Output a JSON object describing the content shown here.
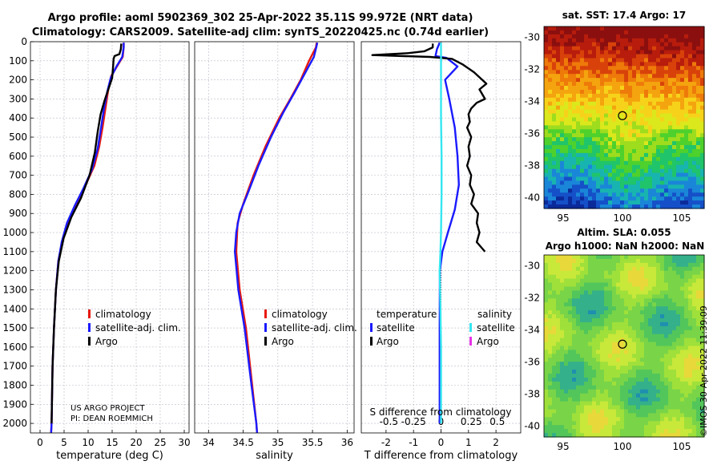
{
  "header": {
    "title_line1": "Argo profile: aoml 5902369_302 25-Apr-2022 35.11S 99.972E (NRT data)",
    "title_line2": "Climatology: CARS2009. Satellite-adj clim: synTS_20220425.nc (0.74d earlier)"
  },
  "colors": {
    "climatology": "#e8190f",
    "satellite": "#1a1aff",
    "argo": "#000000",
    "sat_salinity": "#33e6f0",
    "argo_salinity": "#e633e6"
  },
  "chart_data": [
    {
      "type": "line",
      "name": "temperature-profile",
      "xlabel": "temperature (deg C)",
      "ylabel": "",
      "xlim": [
        -2,
        31
      ],
      "ylim": [
        2050,
        0
      ],
      "xticks": [
        "0",
        "5",
        "10",
        "15",
        "20",
        "25",
        "30"
      ],
      "yticks": [
        "0",
        "100",
        "200",
        "300",
        "400",
        "500",
        "600",
        "700",
        "800",
        "900",
        "1000",
        "1100",
        "1200",
        "1300",
        "1400",
        "1500",
        "1600",
        "1700",
        "1800",
        "1900",
        "2000"
      ],
      "legend": [
        "climatology",
        "satellite-adj. clim.",
        "Argo"
      ],
      "series": [
        {
          "name": "climatology",
          "points": [
            [
              2.3,
              2050
            ],
            [
              2.4,
              2000
            ],
            [
              2.6,
              1700
            ],
            [
              2.9,
              1500
            ],
            [
              3.3,
              1300
            ],
            [
              3.8,
              1150
            ],
            [
              4.6,
              1050
            ],
            [
              5.8,
              950
            ],
            [
              7.5,
              850
            ],
            [
              9.5,
              750
            ],
            [
              11.3,
              650
            ],
            [
              12.3,
              550
            ],
            [
              13,
              450
            ],
            [
              13.6,
              350
            ],
            [
              14.2,
              250
            ],
            [
              14.8,
              180
            ],
            [
              16,
              130
            ],
            [
              17.2,
              80
            ],
            [
              17.4,
              30
            ],
            [
              17.4,
              5
            ]
          ]
        },
        {
          "name": "satellite-adj. clim.",
          "points": [
            [
              2.3,
              2050
            ],
            [
              2.4,
              2000
            ],
            [
              2.6,
              1700
            ],
            [
              2.9,
              1500
            ],
            [
              3.3,
              1300
            ],
            [
              3.8,
              1150
            ],
            [
              4.5,
              1050
            ],
            [
              5.6,
              950
            ],
            [
              7.2,
              860
            ],
            [
              9,
              770
            ],
            [
              10.8,
              670
            ],
            [
              12,
              560
            ],
            [
              12.7,
              450
            ],
            [
              13.3,
              350
            ],
            [
              14,
              260
            ],
            [
              14.7,
              190
            ],
            [
              15.9,
              130
            ],
            [
              17.1,
              80
            ],
            [
              17.4,
              30
            ],
            [
              17.4,
              5
            ]
          ]
        },
        {
          "name": "Argo",
          "points": [
            [
              2.4,
              2000
            ],
            [
              2.6,
              1700
            ],
            [
              2.9,
              1500
            ],
            [
              3.3,
              1300
            ],
            [
              3.9,
              1150
            ],
            [
              4.9,
              1030
            ],
            [
              6.5,
              920
            ],
            [
              8.5,
              820
            ],
            [
              10.3,
              700
            ],
            [
              11.4,
              580
            ],
            [
              12,
              470
            ],
            [
              12.6,
              380
            ],
            [
              13.4,
              310
            ],
            [
              14.2,
              250
            ],
            [
              15,
              190
            ],
            [
              15.2,
              130
            ],
            [
              15.3,
              90
            ],
            [
              15.5,
              75
            ],
            [
              16.5,
              65
            ],
            [
              16.8,
              40
            ],
            [
              16.9,
              10
            ]
          ]
        }
      ]
    },
    {
      "type": "line",
      "name": "salinity-profile",
      "xlabel": "salinity",
      "ylabel": "",
      "xlim": [
        33.8,
        36.1
      ],
      "ylim": [
        2050,
        0
      ],
      "xticks": [
        "34",
        "34.5",
        "35",
        "35.5",
        "36"
      ],
      "legend": [
        "climatology",
        "satellite-adj. clim.",
        "Argo"
      ],
      "series": [
        {
          "name": "climatology",
          "points": [
            [
              34.7,
              2050
            ],
            [
              34.69,
              2000
            ],
            [
              34.63,
              1800
            ],
            [
              34.54,
              1500
            ],
            [
              34.45,
              1300
            ],
            [
              34.4,
              1100
            ],
            [
              34.42,
              950
            ],
            [
              34.5,
              850
            ],
            [
              34.65,
              700
            ],
            [
              34.82,
              550
            ],
            [
              35.02,
              400
            ],
            [
              35.18,
              300
            ],
            [
              35.33,
              200
            ],
            [
              35.45,
              100
            ],
            [
              35.55,
              30
            ],
            [
              35.56,
              5
            ]
          ]
        },
        {
          "name": "satellite-adj. clim.",
          "points": [
            [
              34.7,
              2050
            ],
            [
              34.69,
              2000
            ],
            [
              34.62,
              1800
            ],
            [
              34.52,
              1500
            ],
            [
              34.43,
              1300
            ],
            [
              34.38,
              1100
            ],
            [
              34.4,
              1000
            ],
            [
              34.45,
              900
            ],
            [
              34.56,
              800
            ],
            [
              34.72,
              650
            ],
            [
              34.9,
              500
            ],
            [
              35.08,
              370
            ],
            [
              35.25,
              260
            ],
            [
              35.4,
              160
            ],
            [
              35.52,
              80
            ],
            [
              35.56,
              20
            ],
            [
              35.57,
              5
            ]
          ]
        },
        {
          "name": "Argo",
          "points": []
        }
      ]
    },
    {
      "type": "line",
      "name": "difference-profile",
      "xlabel": "T difference from climatology",
      "x2label": "S difference from climatology",
      "xlim": [
        -2.9,
        2.9
      ],
      "ylim": [
        2050,
        0
      ],
      "xticks": [
        "-2",
        "-1",
        "0",
        "1",
        "2"
      ],
      "x2ticks": [
        "-0.5",
        "-0.25",
        "0",
        "0.25",
        "0.5"
      ],
      "legend_temperature": [
        "temperature",
        "satellite",
        "Argo"
      ],
      "legend_salinity": [
        "salinity",
        "satellite",
        "Argo"
      ],
      "series": [
        {
          "name": "T satellite",
          "points": [
            [
              -0.05,
              2000
            ],
            [
              -0.05,
              1700
            ],
            [
              -0.05,
              1500
            ],
            [
              -0.04,
              1200
            ],
            [
              0.05,
              1100
            ],
            [
              0.25,
              1000
            ],
            [
              0.5,
              880
            ],
            [
              0.65,
              750
            ],
            [
              0.6,
              600
            ],
            [
              0.5,
              450
            ],
            [
              0.3,
              300
            ],
            [
              0.15,
              200
            ],
            [
              0.6,
              130
            ],
            [
              0.2,
              85
            ],
            [
              -0.2,
              75
            ],
            [
              -0.15,
              40
            ],
            [
              -0.05,
              5
            ]
          ]
        },
        {
          "name": "T Argo",
          "points": [
            [
              1.6,
              1100
            ],
            [
              1.3,
              1050
            ],
            [
              1.4,
              1000
            ],
            [
              1.3,
              950
            ],
            [
              1.35,
              900
            ],
            [
              1.1,
              850
            ],
            [
              1.2,
              800
            ],
            [
              1.05,
              750
            ],
            [
              1.1,
              700
            ],
            [
              0.95,
              650
            ],
            [
              1.05,
              600
            ],
            [
              1.0,
              550
            ],
            [
              1.1,
              500
            ],
            [
              0.95,
              450
            ],
            [
              1.05,
              420
            ],
            [
              1.0,
              380
            ],
            [
              1.1,
              350
            ],
            [
              1.3,
              320
            ],
            [
              1.6,
              300
            ],
            [
              1.4,
              250
            ],
            [
              1.65,
              220
            ],
            [
              1.5,
              200
            ],
            [
              1.2,
              160
            ],
            [
              0.8,
              120
            ],
            [
              0.4,
              90
            ],
            [
              -0.4,
              80
            ],
            [
              -2.5,
              70
            ],
            [
              -1.2,
              60
            ],
            [
              -0.6,
              50
            ],
            [
              -0.3,
              30
            ],
            [
              -0.3,
              10
            ]
          ]
        },
        {
          "name": "S satellite",
          "points": [
            [
              0.0,
              2000
            ],
            [
              0.0,
              1800
            ],
            [
              0.0,
              1600
            ],
            [
              -0.02,
              1400
            ],
            [
              -0.05,
              1200
            ],
            [
              -0.02,
              1100
            ],
            [
              0.0,
              1000
            ],
            [
              0.02,
              800
            ],
            [
              0.02,
              600
            ],
            [
              0.0,
              400
            ],
            [
              0.0,
              200
            ],
            [
              0.0,
              100
            ],
            [
              0.0,
              5
            ]
          ]
        },
        {
          "name": "S Argo",
          "points": []
        }
      ]
    }
  ],
  "maps": {
    "sst": {
      "title": "sat. SST: 17.4 Argo: 17",
      "xticks": [
        "95",
        "100",
        "105"
      ],
      "yticks": [
        "-30",
        "-32",
        "-34",
        "-36",
        "-38",
        "-40"
      ]
    },
    "sla": {
      "title_line1": "Altim. SLA: 0.055",
      "title_line2": "Argo h1000: NaN h2000: NaN",
      "xticks": [
        "95",
        "100",
        "105"
      ],
      "yticks": [
        "-30",
        "-32",
        "-34",
        "-36",
        "-38",
        "-40"
      ]
    }
  },
  "footer": {
    "project_line1": "US ARGO PROJECT",
    "project_line2": "PI: DEAN ROEMMICH",
    "stamp": "©IMOS 30-Apr-2022 11:39:09"
  }
}
